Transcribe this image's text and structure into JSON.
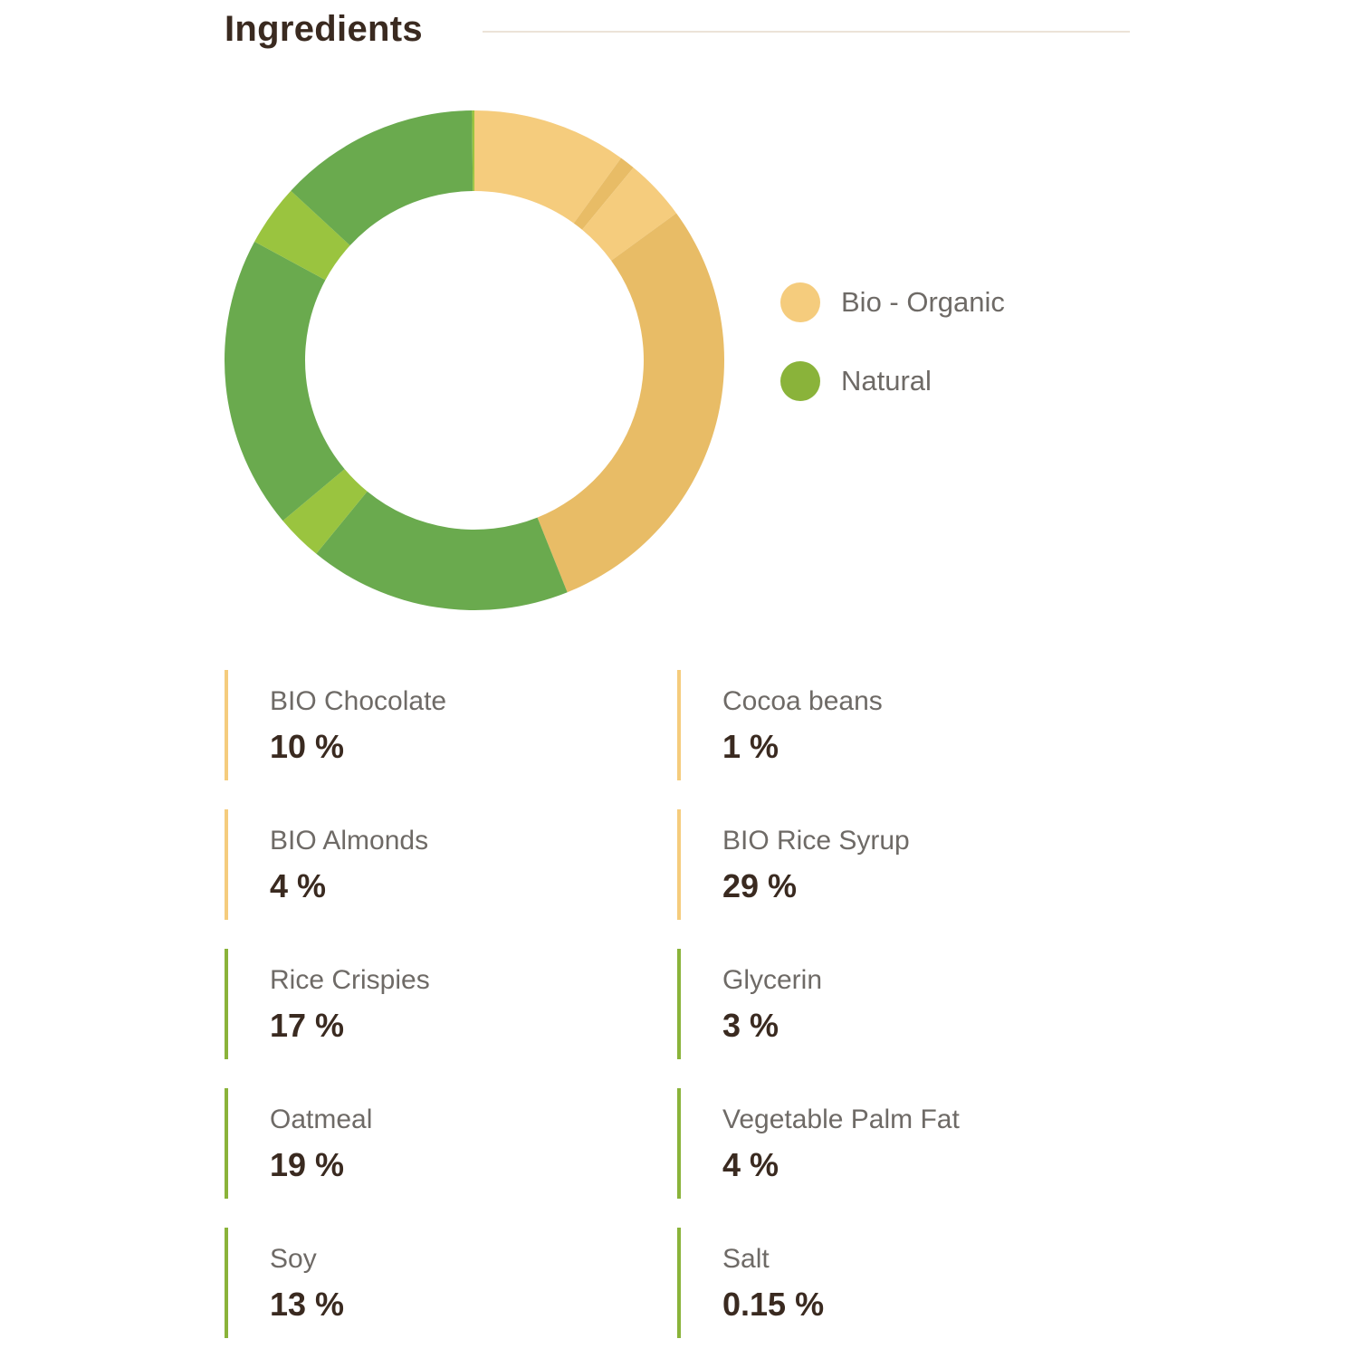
{
  "header": {
    "title": "Ingredients"
  },
  "legend": [
    {
      "label": "Bio - Organic",
      "color": "#f5cc7d"
    },
    {
      "label": "Natural",
      "color": "#8ab33a"
    }
  ],
  "chart_data": {
    "type": "pie",
    "variant": "donut",
    "legend_placement": "right",
    "slices": [
      {
        "label": "BIO Chocolate",
        "value": 10,
        "color": "#f5cc7d"
      },
      {
        "label": "Cocoa beans",
        "value": 1,
        "color": "#e8bc66"
      },
      {
        "label": "BIO Almonds",
        "value": 4,
        "color": "#f5cc7d"
      },
      {
        "label": "BIO Rice Syrup",
        "value": 29,
        "color": "#e8bc66"
      },
      {
        "label": "Rice Crispies",
        "value": 17,
        "color": "#6aaa4e"
      },
      {
        "label": "Glycerin",
        "value": 3,
        "color": "#9ac43f"
      },
      {
        "label": "Oatmeal",
        "value": 19,
        "color": "#6aaa4e"
      },
      {
        "label": "Vegetable Palm Fat",
        "value": 4,
        "color": "#9ac43f"
      },
      {
        "label": "Soy",
        "value": 13,
        "color": "#6aaa4e"
      },
      {
        "label": "Salt",
        "value": 0.15,
        "color": "#9ac43f"
      }
    ]
  },
  "ingredients": [
    {
      "name": "BIO Chocolate",
      "value": "10 %",
      "color": "#f5cc7d"
    },
    {
      "name": "Cocoa beans",
      "value": "1 %",
      "color": "#f5cc7d"
    },
    {
      "name": "BIO Almonds",
      "value": "4 %",
      "color": "#f5cc7d"
    },
    {
      "name": "BIO Rice Syrup",
      "value": "29 %",
      "color": "#f5cc7d"
    },
    {
      "name": "Rice Crispies",
      "value": "17 %",
      "color": "#8ab33a"
    },
    {
      "name": "Glycerin",
      "value": "3 %",
      "color": "#8ab33a"
    },
    {
      "name": "Oatmeal",
      "value": "19 %",
      "color": "#8ab33a"
    },
    {
      "name": "Vegetable Palm Fat",
      "value": "4 %",
      "color": "#8ab33a"
    },
    {
      "name": "Soy",
      "value": "13 %",
      "color": "#8ab33a"
    },
    {
      "name": "Salt",
      "value": "0.15 %",
      "color": "#8ab33a"
    }
  ]
}
